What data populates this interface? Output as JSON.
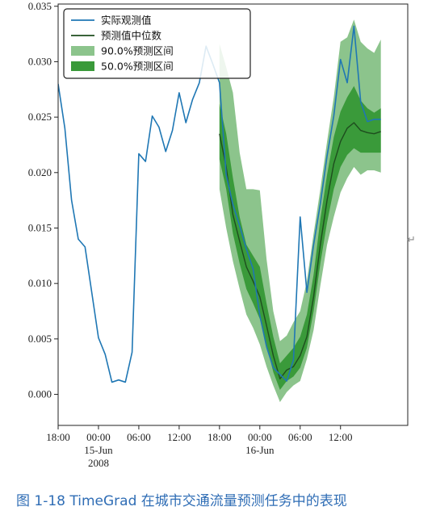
{
  "caption": "图 1-18   TimeGrad 在城市交通流量预测任务中的表现",
  "return_mark": "↵",
  "colors": {
    "actual": "#1f77b4",
    "median": "#1e4d1e",
    "band90": "#8cc48c",
    "band50": "#3a9a3a"
  },
  "chart_data": {
    "type": "line",
    "title": "",
    "xlabel": "",
    "ylabel": "",
    "ylim": [
      -0.0028,
      0.0352
    ],
    "xlim": [
      0,
      52
    ],
    "yticks": [
      "0.000",
      "0.005",
      "0.010",
      "0.015",
      "0.020",
      "0.025",
      "0.030",
      "0.035"
    ],
    "ytick_values": [
      0.0,
      0.005,
      0.01,
      0.015,
      0.02,
      0.025,
      0.03,
      0.035
    ],
    "xticks": [
      {
        "x": 0,
        "lines": [
          "18:00"
        ]
      },
      {
        "x": 6,
        "lines": [
          "00:00",
          "15-Jun",
          "2008"
        ]
      },
      {
        "x": 12,
        "lines": [
          "06:00"
        ]
      },
      {
        "x": 18,
        "lines": [
          "12:00"
        ]
      },
      {
        "x": 24,
        "lines": [
          "18:00"
        ]
      },
      {
        "x": 30,
        "lines": [
          "00:00",
          "16-Jun"
        ]
      },
      {
        "x": 36,
        "lines": [
          "06:00"
        ]
      },
      {
        "x": 42,
        "lines": [
          "12:00"
        ]
      }
    ],
    "legend": {
      "placement": "top-left",
      "entries": [
        {
          "label": "实际观测值",
          "kind": "line",
          "color": "#1f77b4"
        },
        {
          "label": "预测值中位数",
          "kind": "line",
          "color": "#1e4d1e"
        },
        {
          "label": "90.0%预测区间",
          "kind": "patch",
          "color": "#8cc48c"
        },
        {
          "label": "50.0%预测区间",
          "kind": "patch",
          "color": "#3a9a3a"
        }
      ]
    },
    "series": [
      {
        "name": "实际观测值",
        "x": [
          0,
          1,
          2,
          3,
          4,
          5,
          6,
          7,
          8,
          9,
          10,
          11,
          12,
          13,
          14,
          15,
          16,
          17,
          18,
          19,
          20,
          21,
          22,
          23,
          24,
          25,
          26,
          27,
          28,
          29,
          30,
          31,
          32,
          33,
          34,
          35,
          36,
          37,
          38,
          39,
          40,
          41,
          42,
          43,
          44,
          45,
          46,
          47,
          48
        ],
        "y": [
          0.028,
          0.024,
          0.0175,
          0.014,
          0.0133,
          0.0092,
          0.0051,
          0.0036,
          0.0011,
          0.0013,
          0.0011,
          0.0038,
          0.0217,
          0.021,
          0.0251,
          0.0241,
          0.0219,
          0.0238,
          0.0272,
          0.0245,
          0.0266,
          0.0281,
          0.0314,
          0.0298,
          0.0281,
          0.0198,
          0.0171,
          0.0152,
          0.0131,
          0.0113,
          0.0071,
          0.0043,
          0.0024,
          0.0018,
          0.0012,
          0.0031,
          0.016,
          0.0092,
          0.0135,
          0.0172,
          0.0215,
          0.0251,
          0.0302,
          0.0281,
          0.0332,
          0.0264,
          0.0246,
          0.0248,
          0.0248
        ]
      },
      {
        "name": "预测值中位数",
        "x": [
          24,
          25,
          26,
          27,
          28,
          29,
          30,
          31,
          32,
          33,
          34,
          35,
          36,
          37,
          38,
          39,
          40,
          41,
          42,
          43,
          44,
          45,
          46,
          47,
          48
        ],
        "y": [
          0.0235,
          0.0205,
          0.0162,
          0.0138,
          0.0115,
          0.0102,
          0.0088,
          0.0062,
          0.0035,
          0.0014,
          0.0022,
          0.0025,
          0.0035,
          0.0052,
          0.0088,
          0.0135,
          0.0175,
          0.0208,
          0.0228,
          0.024,
          0.0245,
          0.0238,
          0.0236,
          0.0235,
          0.0237
        ]
      }
    ],
    "bands": [
      {
        "name": "90.0%预测区间",
        "x": [
          24,
          25,
          26,
          27,
          28,
          29,
          30,
          31,
          32,
          33,
          34,
          35,
          36,
          37,
          38,
          39,
          40,
          41,
          42,
          43,
          44,
          45,
          46,
          47,
          48
        ],
        "lower": [
          0.0185,
          0.015,
          0.012,
          0.0095,
          0.0072,
          0.006,
          0.0045,
          0.0025,
          0.0008,
          -0.0007,
          0.0002,
          0.0008,
          0.0012,
          0.0032,
          0.0058,
          0.0098,
          0.0135,
          0.016,
          0.0182,
          0.0195,
          0.0205,
          0.0198,
          0.0202,
          0.0202,
          0.02
        ],
        "upper": [
          0.0316,
          0.0295,
          0.0272,
          0.0218,
          0.0185,
          0.0185,
          0.0184,
          0.0122,
          0.0075,
          0.0048,
          0.0053,
          0.0065,
          0.0075,
          0.0102,
          0.0145,
          0.0185,
          0.0228,
          0.0268,
          0.0318,
          0.0322,
          0.0338,
          0.0318,
          0.0312,
          0.0308,
          0.032
        ]
      },
      {
        "name": "50.0%预测区间",
        "x": [
          24,
          25,
          26,
          27,
          28,
          29,
          30,
          31,
          32,
          33,
          34,
          35,
          36,
          37,
          38,
          39,
          40,
          41,
          42,
          43,
          44,
          45,
          46,
          47,
          48
        ],
        "lower": [
          0.0212,
          0.0185,
          0.0145,
          0.0118,
          0.0095,
          0.0082,
          0.0068,
          0.0045,
          0.002,
          0.0004,
          0.0012,
          0.0016,
          0.0024,
          0.0042,
          0.0075,
          0.0118,
          0.0155,
          0.0185,
          0.0205,
          0.0216,
          0.0222,
          0.0218,
          0.0218,
          0.0218,
          0.0218
        ],
        "upper": [
          0.0262,
          0.0235,
          0.0195,
          0.016,
          0.0135,
          0.0125,
          0.0115,
          0.0082,
          0.0052,
          0.0028,
          0.0035,
          0.0042,
          0.0052,
          0.0072,
          0.0108,
          0.0158,
          0.0198,
          0.0232,
          0.0255,
          0.0268,
          0.0278,
          0.0265,
          0.0258,
          0.0254,
          0.0258
        ]
      }
    ]
  }
}
